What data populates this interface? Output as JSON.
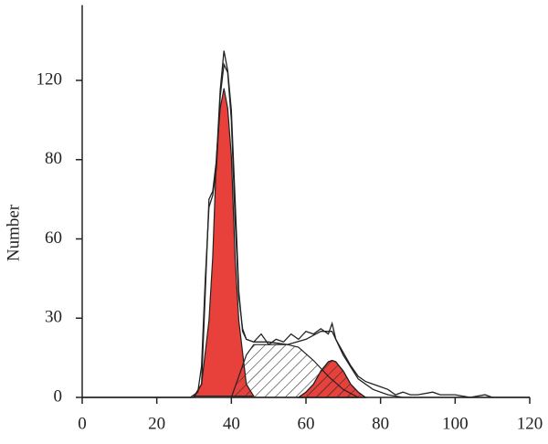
{
  "chart_data": {
    "type": "line",
    "y_label": "Number",
    "xlim": [
      0,
      120
    ],
    "xticks": [
      0,
      20,
      40,
      60,
      80,
      100,
      120
    ],
    "ylim": [
      0,
      158
    ],
    "yticks": [
      0,
      30,
      60,
      80,
      120
    ],
    "series": [
      {
        "color": "#e8403a",
        "fill": true,
        "hatch": false,
        "x": [
          30,
          32,
          34,
          35,
          36,
          37,
          38,
          39,
          40,
          41,
          42,
          44,
          46
        ],
        "values": [
          0.5,
          5,
          29,
          53,
          82,
          106,
          116,
          106,
          82,
          53,
          29,
          5,
          0.5
        ]
      },
      {
        "color": "#e8403a",
        "fill": true,
        "hatch": true,
        "x": [
          58,
          60,
          62,
          64,
          66,
          67,
          68,
          70,
          72,
          74,
          76
        ],
        "values": [
          0,
          2,
          5,
          10,
          13.5,
          14,
          13.5,
          10,
          5,
          2,
          0
        ]
      },
      {
        "color": "none",
        "fill": true,
        "hatch": true,
        "x": [
          40,
          42,
          44,
          46,
          50,
          55,
          58,
          62,
          66,
          70,
          74
        ],
        "values": [
          0,
          8,
          16,
          20,
          20,
          20,
          19,
          14,
          8,
          3,
          0
        ]
      },
      {
        "color": "#222222",
        "fill": false,
        "hatch": false,
        "x": [
          0,
          29,
          31,
          32,
          33,
          34,
          35,
          36,
          37,
          38,
          39,
          40,
          41,
          42,
          43,
          44,
          46,
          50,
          55,
          60,
          64,
          67,
          70,
          74,
          78,
          82,
          86,
          120
        ],
        "values": [
          0,
          0,
          2,
          12,
          45,
          68,
          71,
          78,
          112,
          128,
          124,
          100,
          65,
          38,
          26,
          22,
          21,
          21,
          20,
          22,
          25,
          25,
          16,
          7,
          3,
          1,
          0,
          0
        ]
      },
      {
        "color": "#222222",
        "fill": false,
        "hatch": false,
        "x": [
          0,
          30,
          32,
          33,
          34,
          35,
          36,
          37,
          38,
          39,
          40,
          41,
          42,
          43,
          44,
          46,
          48,
          50,
          52,
          54,
          56,
          58,
          60,
          62,
          64,
          66,
          67,
          68,
          70,
          72,
          74,
          76,
          78,
          80,
          82,
          84,
          86,
          88,
          90,
          94,
          96,
          100,
          104,
          108,
          110,
          120
        ],
        "values": [
          0,
          0,
          5,
          40,
          70,
          72,
          80,
          115,
          135,
          125,
          105,
          70,
          40,
          25,
          22,
          21,
          24,
          20,
          22,
          21,
          24,
          22,
          25,
          24,
          26,
          24,
          28,
          22,
          17,
          12,
          8,
          6,
          5,
          4,
          3,
          1,
          2,
          1,
          1,
          2,
          1,
          1,
          0,
          1,
          0,
          0
        ]
      }
    ]
  }
}
